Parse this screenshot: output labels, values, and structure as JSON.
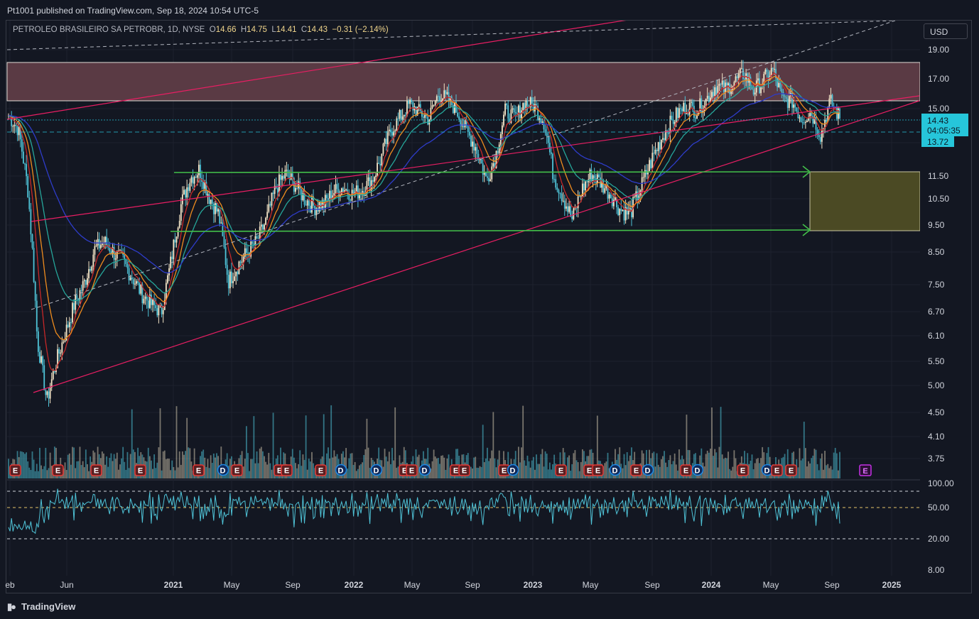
{
  "header": {
    "publish_line": "Pt1001 published on TradingView.com, Sep 18, 2024 10:54 UTC-5"
  },
  "symbol_bar": {
    "name": "PETROLEO BRASILEIRO SA PETROBR, 1D, NYSE",
    "open_label": "O",
    "open": "14.66",
    "high_label": "H",
    "high": "14.75",
    "low_label": "L",
    "low": "14.41",
    "close_label": "C",
    "close": "14.43",
    "change": "−0.31 (−2.14%)"
  },
  "currency_button": "USD",
  "branding": {
    "logo_text": "TradingView"
  },
  "colors": {
    "background": "#131722",
    "candle_up": "#f5e6c8",
    "candle_down": "#4fc3d7",
    "ema_red": "#c62828",
    "ema_orange": "#ef8c1e",
    "ema_teal": "#26a69a",
    "ema_blue": "#2e3cc9",
    "channel": "#e91e63",
    "support_lines": "#43c04a",
    "zone_top": "#5a3a44",
    "zone_box": "#5d5a2a",
    "price_tag": "#26c6da",
    "rsi_line": "#4fc3d7",
    "event_earnings": "#e53935",
    "event_dividend": "#1e88e5"
  },
  "price_axis": {
    "ticks": [
      "19.00",
      "17.00",
      "15.00",
      "13.00",
      "11.50",
      "10.50",
      "9.50",
      "8.50",
      "7.50",
      "6.70",
      "6.10",
      "5.50",
      "5.00",
      "4.50",
      "4.10",
      "3.75"
    ],
    "last_price": "14.43",
    "countdown": "04:05:35",
    "ref_price": "13.72"
  },
  "rsi_axis": {
    "ticks": [
      "100.00",
      "50.00",
      "20.00",
      "8.00"
    ]
  },
  "time_axis": {
    "labels": [
      "eb",
      "Jun",
      "2021",
      "May",
      "Sep",
      "2022",
      "May",
      "Sep",
      "2023",
      "May",
      "Sep",
      "2024",
      "May",
      "Sep",
      "2025"
    ]
  },
  "events": {
    "items": [
      "E",
      "E",
      "E",
      "E",
      "E",
      "D",
      "E",
      "E",
      "E",
      "D",
      "E",
      "D",
      "E",
      "E",
      "D",
      "E",
      "E",
      "E",
      "D",
      "E",
      "E",
      "E",
      "D",
      "E",
      "D",
      "E",
      "D",
      "E",
      "D",
      "E",
      "E"
    ],
    "future": "E"
  },
  "chart_data": {
    "type": "candlestick",
    "series": [
      {
        "values": [
          14.6,
          13.8,
          11.0,
          6.0,
          4.7,
          5.5,
          6.2,
          7.0,
          7.6,
          8.6,
          8.9,
          8.5,
          8.2,
          7.7,
          7.2,
          6.9,
          6.7,
          8.2,
          10.2,
          11.4,
          11.8,
          10.6,
          9.9,
          7.6,
          8.1,
          8.5,
          8.9,
          9.7,
          11.0,
          11.6,
          11.1,
          10.5,
          10.2,
          10.3,
          10.8,
          11.0,
          10.7,
          10.9,
          11.3,
          12.3,
          13.7,
          14.5,
          15.3,
          14.8,
          14.4,
          16.0,
          15.6,
          14.8,
          13.6,
          12.7,
          11.3,
          12.4,
          14.9,
          14.4,
          15.4,
          15.2,
          14.3,
          11.6,
          10.6,
          9.7,
          10.9,
          11.6,
          11.2,
          10.7,
          10.1,
          9.9,
          10.8,
          11.9,
          12.9,
          13.9,
          14.7,
          15.2,
          14.9,
          15.6,
          16.5,
          16.3,
          16.8,
          17.4,
          16.2,
          16.9,
          17.6,
          15.6,
          15.5,
          14.4,
          14.8,
          13.4,
          15.5,
          14.43
        ]
      }
    ],
    "channel_levels": [
      14.2,
      17.6
    ],
    "support_levels": [
      11.55,
      9.35
    ],
    "resistance_zone": [
      15.3,
      18.1
    ],
    "target_zone": [
      9.35,
      11.55
    ],
    "rsi": {
      "levels": [
        80,
        50,
        20
      ]
    }
  }
}
